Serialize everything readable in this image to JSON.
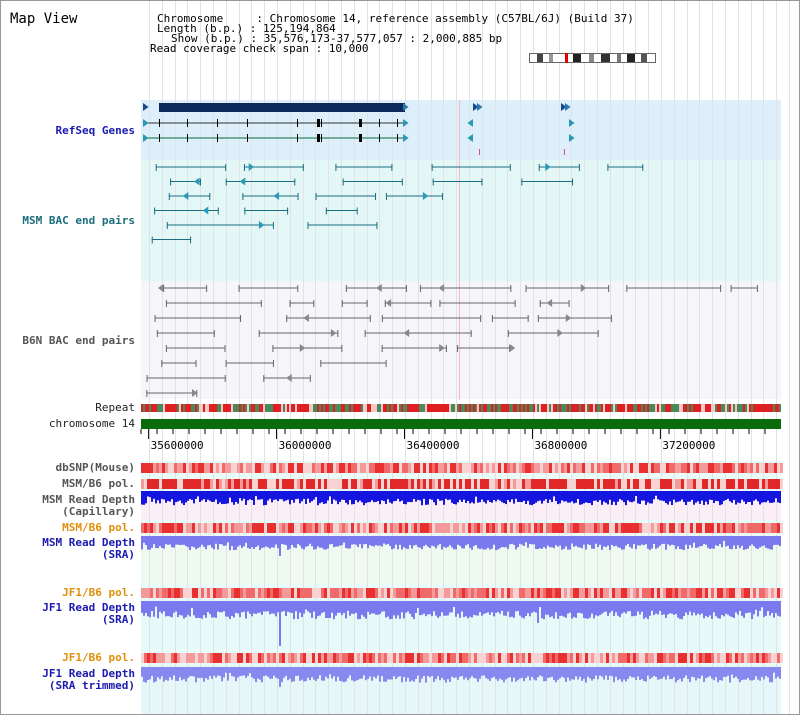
{
  "header": {
    "title": "Map View",
    "info_lines": [
      "Chromosome     : Chromosome 14, reference assembly (C57BL/6J) (Build 37)",
      "Length (b.p.) : 125,194,864",
      "Show (b.p.) : 35,576,173-37,577,057 : 2,000,885 bp",
      "Read coverage check span : 10,000"
    ]
  },
  "tracks": {
    "refseq": "RefSeq Genes",
    "msm_bac": "MSM BAC end pairs",
    "b6n_bac": "B6N BAC end pairs",
    "repeat": "Repeat",
    "chromosome": "chromosome 14",
    "dbsnp": "dbSNP(Mouse)",
    "msm_b6_pol_1": "MSM/B6 pol.",
    "msm_depth_cap_1": "MSM Read Depth",
    "msm_depth_cap_2": "(Capillary)",
    "msm_b6_pol_2": "MSM/B6 pol.",
    "msm_depth_sra_1": "MSM Read Depth",
    "msm_depth_sra_2": "(SRA)",
    "jf1_b6_pol_1": "JF1/B6 pol.",
    "jf1_depth_sra_1": "JF1 Read Depth",
    "jf1_depth_sra_2": "(SRA)",
    "jf1_b6_pol_2": "JF1/B6 pol.",
    "jf1_depth_trim_1": "JF1 Read Depth",
    "jf1_depth_trim_2": "(SRA trimmed)"
  },
  "axis": {
    "ticks": [
      {
        "pos": 35600000,
        "label": "35600000"
      },
      {
        "pos": 36000000,
        "label": "36000000"
      },
      {
        "pos": 36400000,
        "label": "36400000"
      },
      {
        "pos": 36800000,
        "label": "36800000"
      },
      {
        "pos": 37200000,
        "label": "37200000"
      }
    ],
    "start": 35576173,
    "end": 37577057
  },
  "colors": {
    "refseq_bg": "#dceffa",
    "msm_bg": "#e4f7f7",
    "b6n_bg": "#f6f6fa",
    "lower_bg": "#e8fbf8",
    "chromosome_bar": "#0a6b0a",
    "depth_capillary": "#1515e0",
    "depth_sra": "#7a7aee",
    "pol_red": "#e8262a"
  }
}
